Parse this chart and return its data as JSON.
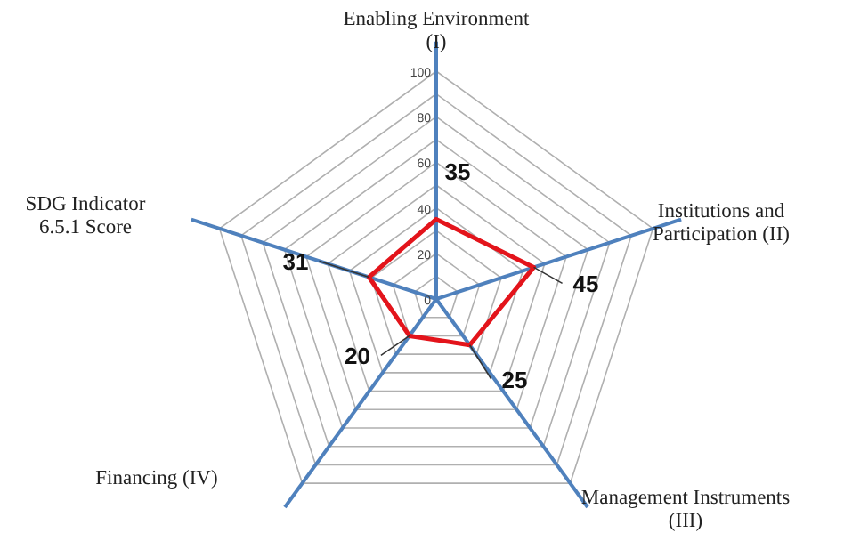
{
  "chart_data": {
    "type": "radar",
    "categories": [
      "Enabling Environment (I)",
      "Institutions and Participation (II)",
      "Management Instruments (III)",
      "Financing (IV)",
      "SDG Indicator 6.5.1 Score"
    ],
    "series": [
      {
        "color": "#e3141b",
        "values": [
          35,
          45,
          25,
          20,
          31
        ]
      }
    ],
    "ylim": [
      0,
      100
    ],
    "yticks": [
      0,
      20,
      40,
      60,
      80,
      100
    ],
    "data_labels": true
  }
}
